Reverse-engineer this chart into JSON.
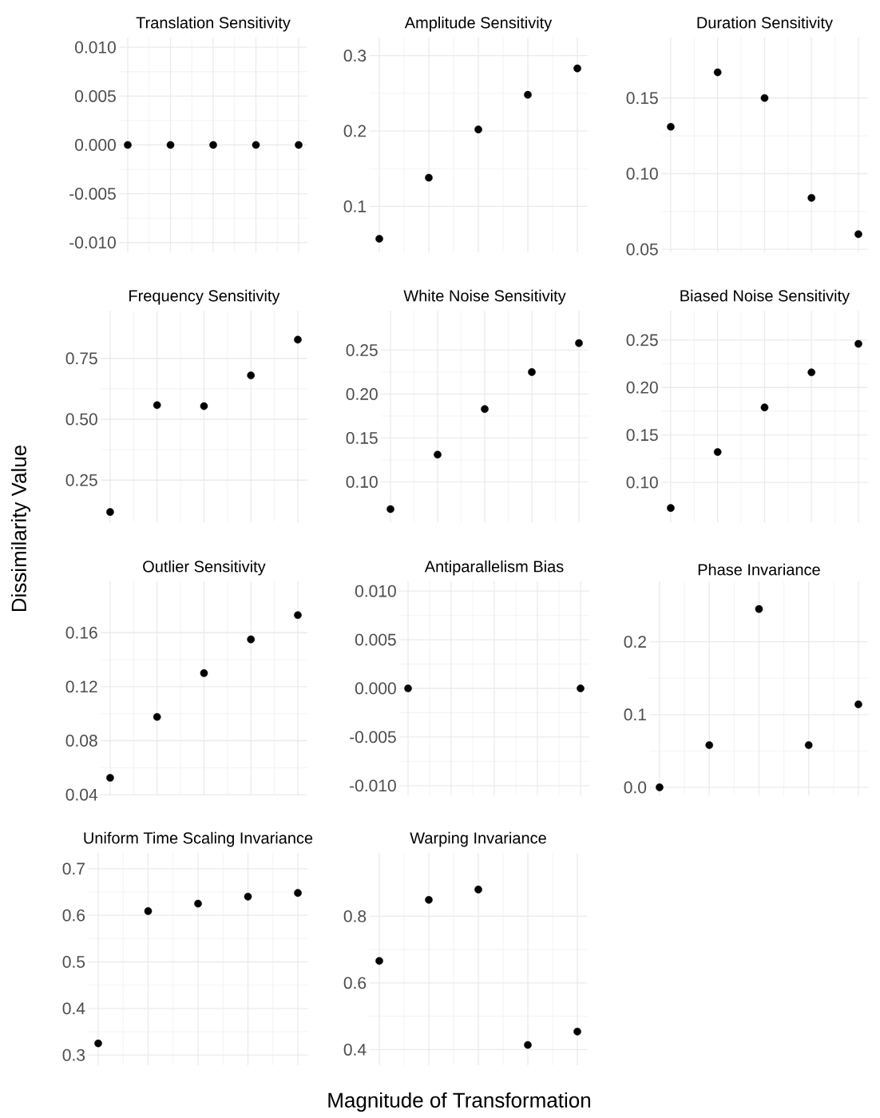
{
  "chart_data": [
    {
      "type": "scatter",
      "title": "Translation Sensitivity",
      "categories": [
        null,
        null,
        null,
        null,
        null
      ],
      "values": [
        0,
        0,
        0,
        0,
        0
      ],
      "color": "#000000",
      "marker": "circle",
      "grid": true,
      "tick_labels": "y",
      "ylim": [
        -0.011,
        0.011
      ],
      "yticks": [
        {
          "value": -0.01,
          "label": "-0.010"
        },
        {
          "value": -0.005,
          "label": "-0.005"
        },
        {
          "value": 0,
          "label": "0.000"
        },
        {
          "value": 0.005,
          "label": "0.005"
        },
        {
          "value": 0.01,
          "label": "0.010"
        }
      ]
    },
    {
      "type": "scatter",
      "title": "Amplitude Sensitivity",
      "categories": [
        null,
        null,
        null,
        null,
        null
      ],
      "values": [
        0.057,
        0.138,
        0.202,
        0.248,
        0.283
      ],
      "color": "#000000",
      "marker": "circle",
      "grid": true,
      "tick_labels": "y",
      "ylim": [
        0.039,
        0.324
      ],
      "yticks": [
        0.1,
        0.2,
        0.3
      ]
    },
    {
      "type": "scatter",
      "title": "Duration Sensitivity",
      "categories": [
        null,
        null,
        null,
        null,
        null
      ],
      "values": [
        0.131,
        0.167,
        0.15,
        0.084,
        0.06
      ],
      "color": "#000000",
      "marker": "circle",
      "grid": true,
      "tick_labels": "y",
      "ylim": [
        0.048,
        0.19
      ],
      "yticks": [
        0.05,
        {
          "value": 0.1,
          "label": "0.10"
        },
        0.15
      ]
    },
    {
      "type": "scatter",
      "title": "Frequency Sensitivity",
      "ylabel": "Dissimilarity Value",
      "categories": [
        null,
        null,
        null,
        null,
        null
      ],
      "values": [
        0.119,
        0.558,
        0.554,
        0.68,
        0.827
      ],
      "color": "#000000",
      "marker": "circle",
      "grid": true,
      "tick_labels": "y",
      "ylim": [
        0.077,
        0.946
      ],
      "yticks": [
        0.25,
        {
          "value": 0.5,
          "label": "0.50"
        },
        0.75
      ]
    },
    {
      "type": "scatter",
      "title": "White Noise Sensitivity",
      "categories": [
        null,
        null,
        null,
        null,
        null
      ],
      "values": [
        0.069,
        0.131,
        0.183,
        0.225,
        0.258
      ],
      "color": "#000000",
      "marker": "circle",
      "grid": true,
      "tick_labels": "y",
      "ylim": [
        0.054,
        0.295
      ],
      "yticks": [
        {
          "value": 0.1,
          "label": "0.10"
        },
        0.15,
        {
          "value": 0.2,
          "label": "0.20"
        },
        0.25
      ]
    },
    {
      "type": "scatter",
      "title": "Biased Noise Sensitivity",
      "categories": [
        null,
        null,
        null,
        null,
        null
      ],
      "values": [
        0.073,
        0.132,
        0.179,
        0.216,
        0.246
      ],
      "color": "#000000",
      "marker": "circle",
      "grid": true,
      "tick_labels": "y",
      "ylim": [
        0.058,
        0.281
      ],
      "yticks": [
        {
          "value": 0.1,
          "label": "0.10"
        },
        0.15,
        {
          "value": 0.2,
          "label": "0.20"
        },
        0.25
      ]
    },
    {
      "type": "scatter",
      "title": "Outlier Sensitivity",
      "categories": [
        null,
        null,
        null,
        null,
        null
      ],
      "values": [
        0.0525,
        0.0976,
        0.13,
        0.155,
        0.173
      ],
      "color": "#000000",
      "marker": "circle",
      "grid": true,
      "tick_labels": "y",
      "ylim": [
        0.0395,
        0.198
      ],
      "yticks": [
        0.04,
        0.08,
        0.12,
        0.16
      ]
    },
    {
      "type": "scatter",
      "title": "Antiparallelism Bias",
      "categories": [
        null,
        null,
        null,
        null,
        null
      ],
      "values": [
        0,
        null,
        null,
        null,
        0
      ],
      "color": "#000000",
      "marker": "circle",
      "grid": true,
      "tick_labels": "y",
      "ylim": [
        -0.011,
        0.011
      ],
      "yticks": [
        {
          "value": -0.01,
          "label": "-0.010"
        },
        {
          "value": -0.005,
          "label": "-0.005"
        },
        {
          "value": 0,
          "label": "0.000"
        },
        {
          "value": 0.005,
          "label": "0.005"
        },
        {
          "value": 0.01,
          "label": "0.010"
        }
      ]
    },
    {
      "type": "scatter",
      "title": "Phase Invariance",
      "categories": [
        null,
        null,
        null,
        null,
        null
      ],
      "values": [
        0,
        0.058,
        0.245,
        0.058,
        0.114
      ],
      "color": "#000000",
      "marker": "circle",
      "grid": true,
      "tick_labels": "y",
      "ylim": [
        -0.011,
        0.283
      ],
      "yticks": [
        {
          "value": 0,
          "label": "0.0"
        },
        0.1,
        0.2
      ]
    },
    {
      "type": "scatter",
      "title": "Uniform Time Scaling Invariance",
      "categories": [
        null,
        null,
        null,
        null,
        null
      ],
      "values": [
        0.325,
        0.609,
        0.625,
        0.64,
        0.648
      ],
      "color": "#000000",
      "marker": "circle",
      "grid": true,
      "tick_labels": "y",
      "ylim": [
        0.278,
        0.734
      ],
      "yticks": [
        0.3,
        0.4,
        0.5,
        0.6,
        0.7
      ]
    },
    {
      "type": "scatter",
      "title": "Warping Invariance",
      "xlabel": "Magnitude of Transformation",
      "categories": [
        null,
        null,
        null,
        null,
        null
      ],
      "values": [
        0.666,
        0.849,
        0.88,
        0.414,
        0.454
      ],
      "color": "#000000",
      "marker": "circle",
      "grid": true,
      "tick_labels": "y",
      "ylim": [
        0.353,
        0.99
      ],
      "yticks": [
        0.4,
        0.6,
        0.8
      ]
    }
  ]
}
